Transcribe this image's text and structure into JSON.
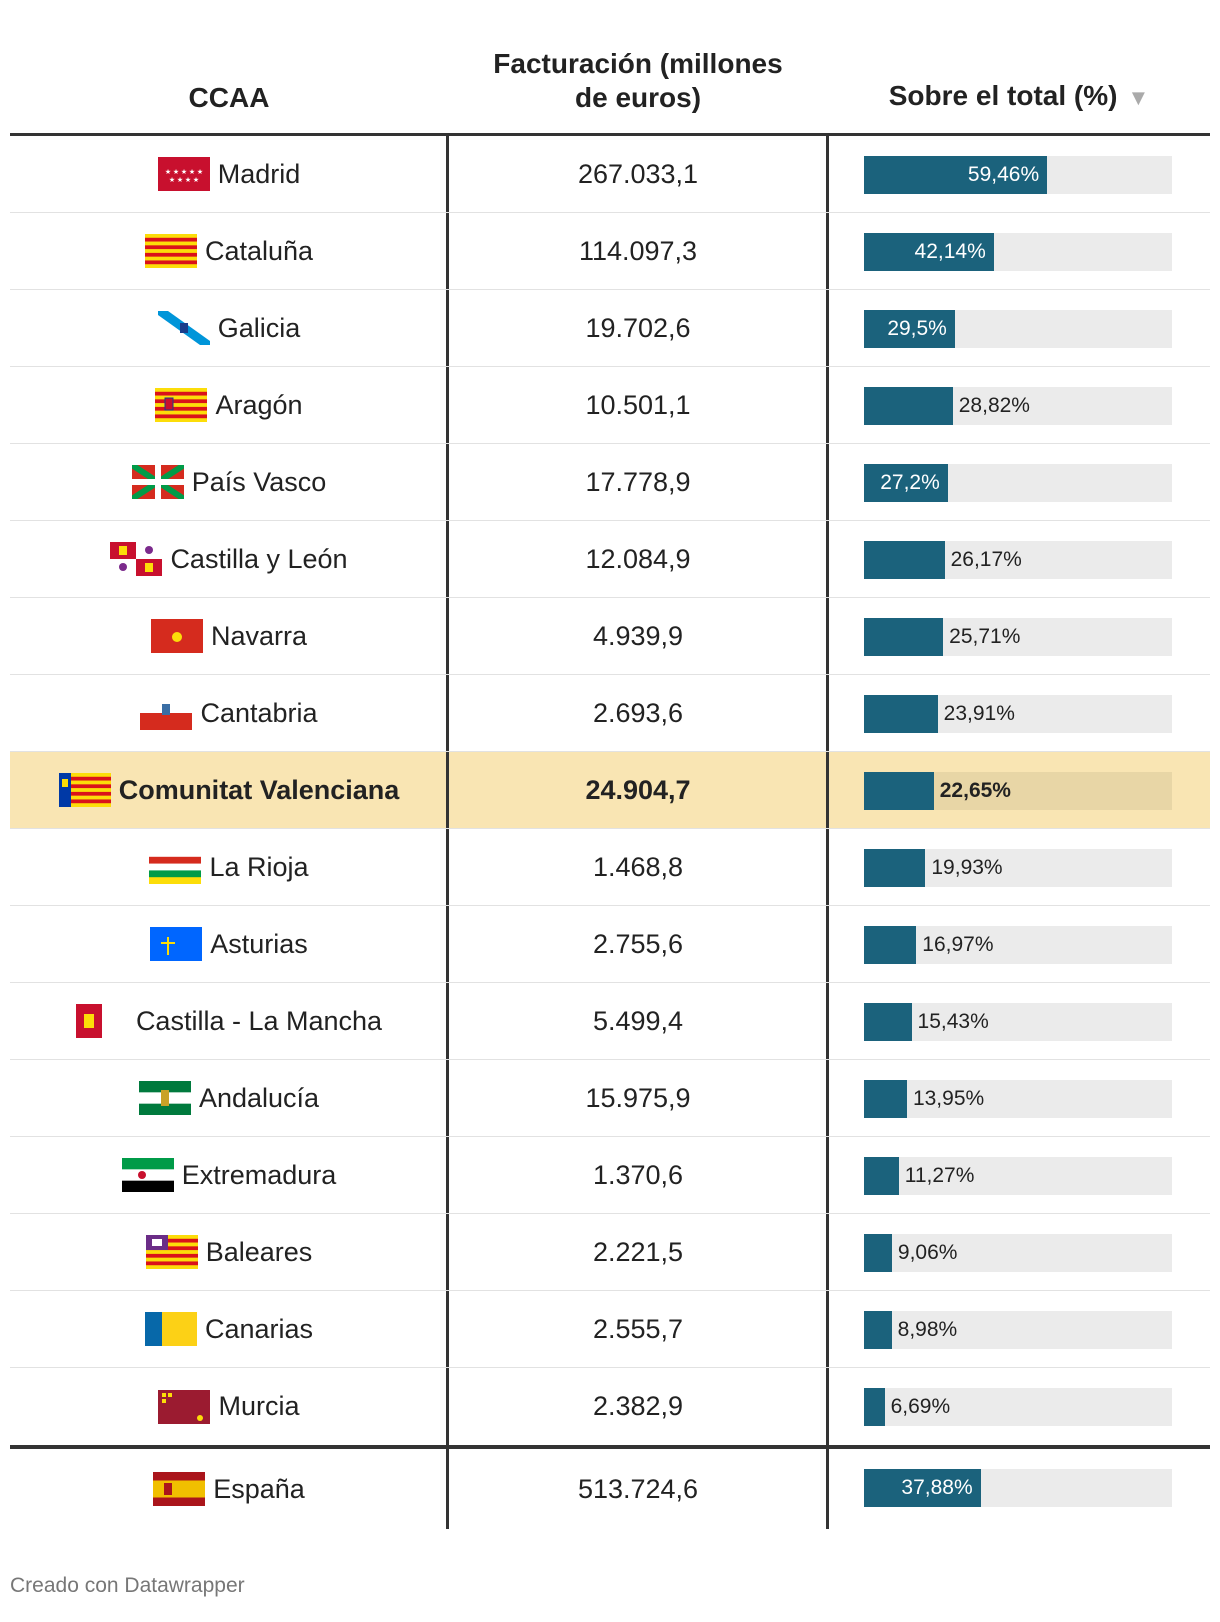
{
  "header": {
    "ccaa": "CCAA",
    "facturacion_line1": "Facturación (millones",
    "facturacion_line2": "de euros)",
    "sobre_total": "Sobre el total (%)",
    "sort_icon": "sort-descending-icon"
  },
  "colors": {
    "bar": "#1b627c",
    "bar_bg": "#ebebeb",
    "highlight": "#f9e5b3"
  },
  "rows": [
    {
      "name": "Madrid",
      "value": "267.033,1",
      "pct": 59.46,
      "pct_label": "59,46%",
      "flag": "madrid"
    },
    {
      "name": "Cataluña",
      "value": "114.097,3",
      "pct": 42.14,
      "pct_label": "42,14%",
      "flag": "cataluna"
    },
    {
      "name": "Galicia",
      "value": "19.702,6",
      "pct": 29.5,
      "pct_label": "29,5%",
      "flag": "galicia"
    },
    {
      "name": "Aragón",
      "value": "10.501,1",
      "pct": 28.82,
      "pct_label": "28,82%",
      "flag": "aragon"
    },
    {
      "name": "País Vasco",
      "value": "17.778,9",
      "pct": 27.2,
      "pct_label": "27,2%",
      "flag": "paisvasco"
    },
    {
      "name": "Castilla y León",
      "value": "12.084,9",
      "pct": 26.17,
      "pct_label": "26,17%",
      "flag": "castillaleon"
    },
    {
      "name": "Navarra",
      "value": "4.939,9",
      "pct": 25.71,
      "pct_label": "25,71%",
      "flag": "navarra"
    },
    {
      "name": "Cantabria",
      "value": "2.693,6",
      "pct": 23.91,
      "pct_label": "23,91%",
      "flag": "cantabria"
    },
    {
      "name": "Comunitat Valenciana",
      "value": "24.904,7",
      "pct": 22.65,
      "pct_label": "22,65%",
      "flag": "valenciana",
      "highlight": true
    },
    {
      "name": "La Rioja",
      "value": "1.468,8",
      "pct": 19.93,
      "pct_label": "19,93%",
      "flag": "rioja"
    },
    {
      "name": "Asturias",
      "value": "2.755,6",
      "pct": 16.97,
      "pct_label": "16,97%",
      "flag": "asturias"
    },
    {
      "name": "Castilla - La Mancha",
      "value": "5.499,4",
      "pct": 15.43,
      "pct_label": "15,43%",
      "flag": "castillamancha"
    },
    {
      "name": "Andalucía",
      "value": "15.975,9",
      "pct": 13.95,
      "pct_label": "13,95%",
      "flag": "andalucia"
    },
    {
      "name": "Extremadura",
      "value": "1.370,6",
      "pct": 11.27,
      "pct_label": "11,27%",
      "flag": "extremadura"
    },
    {
      "name": "Baleares",
      "value": "2.221,5",
      "pct": 9.06,
      "pct_label": "9,06%",
      "flag": "baleares"
    },
    {
      "name": "Canarias",
      "value": "2.555,7",
      "pct": 8.98,
      "pct_label": "8,98%",
      "flag": "canarias"
    },
    {
      "name": "Murcia",
      "value": "2.382,9",
      "pct": 6.69,
      "pct_label": "6,69%",
      "flag": "murcia"
    }
  ],
  "total": {
    "name": "España",
    "value": "513.724,6",
    "pct": 37.88,
    "pct_label": "37,88%",
    "flag": "espana"
  },
  "footer": "Creado con Datawrapper"
}
